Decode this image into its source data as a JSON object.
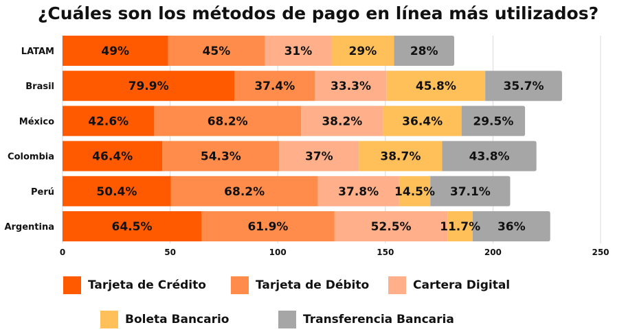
{
  "chart_data": {
    "type": "bar",
    "orientation": "horizontal",
    "stacked": true,
    "title": "¿Cuáles son los métodos de pago en línea más utilizados?",
    "xlabel": "",
    "ylabel": "",
    "categories": [
      "LATAM",
      "Brasil",
      "México",
      "Colombia",
      "Perú",
      "Argentina"
    ],
    "xlim": [
      0,
      250
    ],
    "xticks": [
      0,
      50,
      100,
      150,
      200,
      250
    ],
    "grid": true,
    "legend_position": "bottom",
    "series": [
      {
        "name": "Tarjeta de Crédito",
        "color": "#ff5a00",
        "values": [
          49,
          79.9,
          42.6,
          46.4,
          50.4,
          64.5
        ],
        "labels": [
          "49%",
          "79.9%",
          "42.6%",
          "46.4%",
          "50.4%",
          "64.5%"
        ]
      },
      {
        "name": "Tarjeta de Débito",
        "color": "#ff8c4a",
        "values": [
          45,
          37.4,
          68.2,
          54.3,
          68.2,
          61.9
        ],
        "labels": [
          "45%",
          "37.4%",
          "68.2%",
          "54.3%",
          "68.2%",
          "61.9%"
        ]
      },
      {
        "name": "Cartera Digital",
        "color": "#ffb08a",
        "values": [
          31,
          33.3,
          38.2,
          37,
          37.8,
          52.5
        ],
        "labels": [
          "31%",
          "33.3%",
          "38.2%",
          "37%",
          "37.8%",
          "52.5%"
        ]
      },
      {
        "name": "Boleta Bancario",
        "color": "#ffc05a",
        "values": [
          29,
          45.8,
          36.4,
          38.7,
          14.5,
          11.7
        ],
        "labels": [
          "29%",
          "45.8%",
          "36.4%",
          "38.7%",
          "14.5%",
          "11.7%"
        ]
      },
      {
        "name": "Transferencia Bancaria",
        "color": "#a6a6a6",
        "values": [
          28,
          35.7,
          29.5,
          43.8,
          37.1,
          36
        ],
        "labels": [
          "28%",
          "35.7%",
          "29.5%",
          "43.8%",
          "37.1%",
          "36%"
        ]
      }
    ]
  }
}
